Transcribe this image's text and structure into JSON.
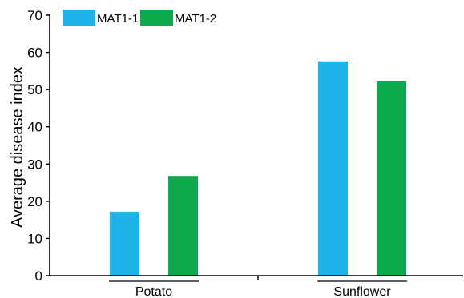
{
  "chart_data": {
    "type": "bar",
    "title": "",
    "xlabel": "",
    "ylabel": "Average disease index",
    "categories": [
      "Potato",
      "Sunflower"
    ],
    "series": [
      {
        "name": "MAT1-1",
        "color": "#1EB4EA",
        "values": [
          17.2,
          57.6
        ]
      },
      {
        "name": "MAT1-2",
        "color": "#0DAA4D",
        "values": [
          26.8,
          52.3
        ]
      }
    ],
    "ylim": [
      0,
      70
    ],
    "yticks": [
      0,
      10,
      20,
      30,
      40,
      50,
      60,
      70
    ],
    "grid": false,
    "legend_position": "top-left"
  }
}
